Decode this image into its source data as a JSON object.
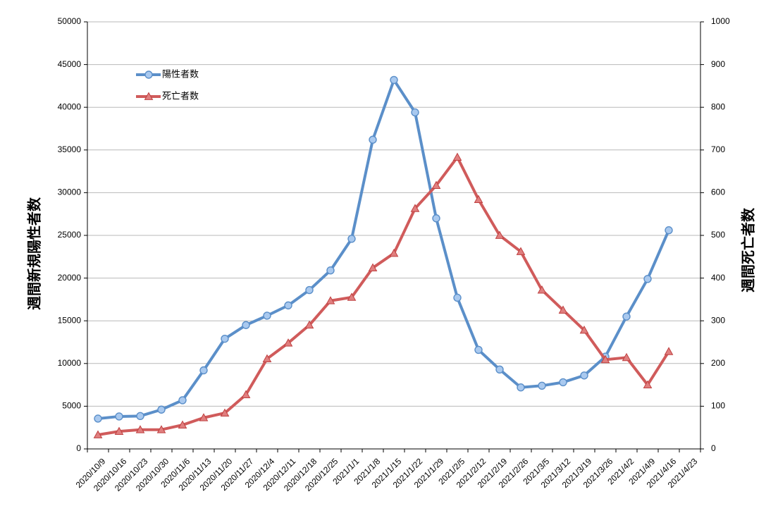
{
  "chart_data": {
    "type": "line",
    "x": [
      "2020/10/9",
      "2020/10/16",
      "2020/10/23",
      "2020/10/30",
      "2020/11/6",
      "2020/11/13",
      "2020/11/20",
      "2020/11/27",
      "2020/12/4",
      "2020/12/11",
      "2020/12/18",
      "2020/12/25",
      "2021/1/1",
      "2021/1/8",
      "2021/1/15",
      "2021/1/22",
      "2021/1/29",
      "2021/2/5",
      "2021/2/12",
      "2021/2/19",
      "2021/2/26",
      "2021/3/5",
      "2021/3/12",
      "2021/3/19",
      "2021/3/26",
      "2021/4/2",
      "2021/4/9",
      "2021/4/16",
      "2021/4/23"
    ],
    "ylabel_left": "週間新規陽性者数",
    "ylabel_right": "週間死亡者数",
    "ylim_left": [
      0,
      50000
    ],
    "ylim_right": [
      0,
      1000
    ],
    "yticks_left": [
      0,
      5000,
      10000,
      15000,
      20000,
      25000,
      30000,
      35000,
      40000,
      45000,
      50000
    ],
    "yticks_right": [
      0,
      100,
      200,
      300,
      400,
      500,
      600,
      700,
      800,
      900,
      1000
    ],
    "grid": true,
    "legend_position": "top-left",
    "series": [
      {
        "name": "陽性者数",
        "axis": "left",
        "color": "#5b8fc9",
        "marker": "circle",
        "values": [
          3550,
          3800,
          3850,
          4600,
          5700,
          9200,
          12900,
          14500,
          15600,
          16800,
          18600,
          20900,
          24600,
          36200,
          43200,
          39400,
          27000,
          17700,
          11600,
          9300,
          7200,
          7400,
          7800,
          8600,
          10800,
          15500,
          19900,
          25600,
          null
        ]
      },
      {
        "name": "死亡者数",
        "axis": "right",
        "color": "#d05b5b",
        "marker": "triangle",
        "values": [
          33,
          41,
          45,
          45,
          56,
          73,
          84,
          127,
          211,
          248,
          290,
          347,
          355,
          424,
          458,
          563,
          617,
          683,
          584,
          500,
          462,
          372,
          325,
          278,
          209,
          214,
          150,
          228,
          null
        ]
      }
    ]
  }
}
